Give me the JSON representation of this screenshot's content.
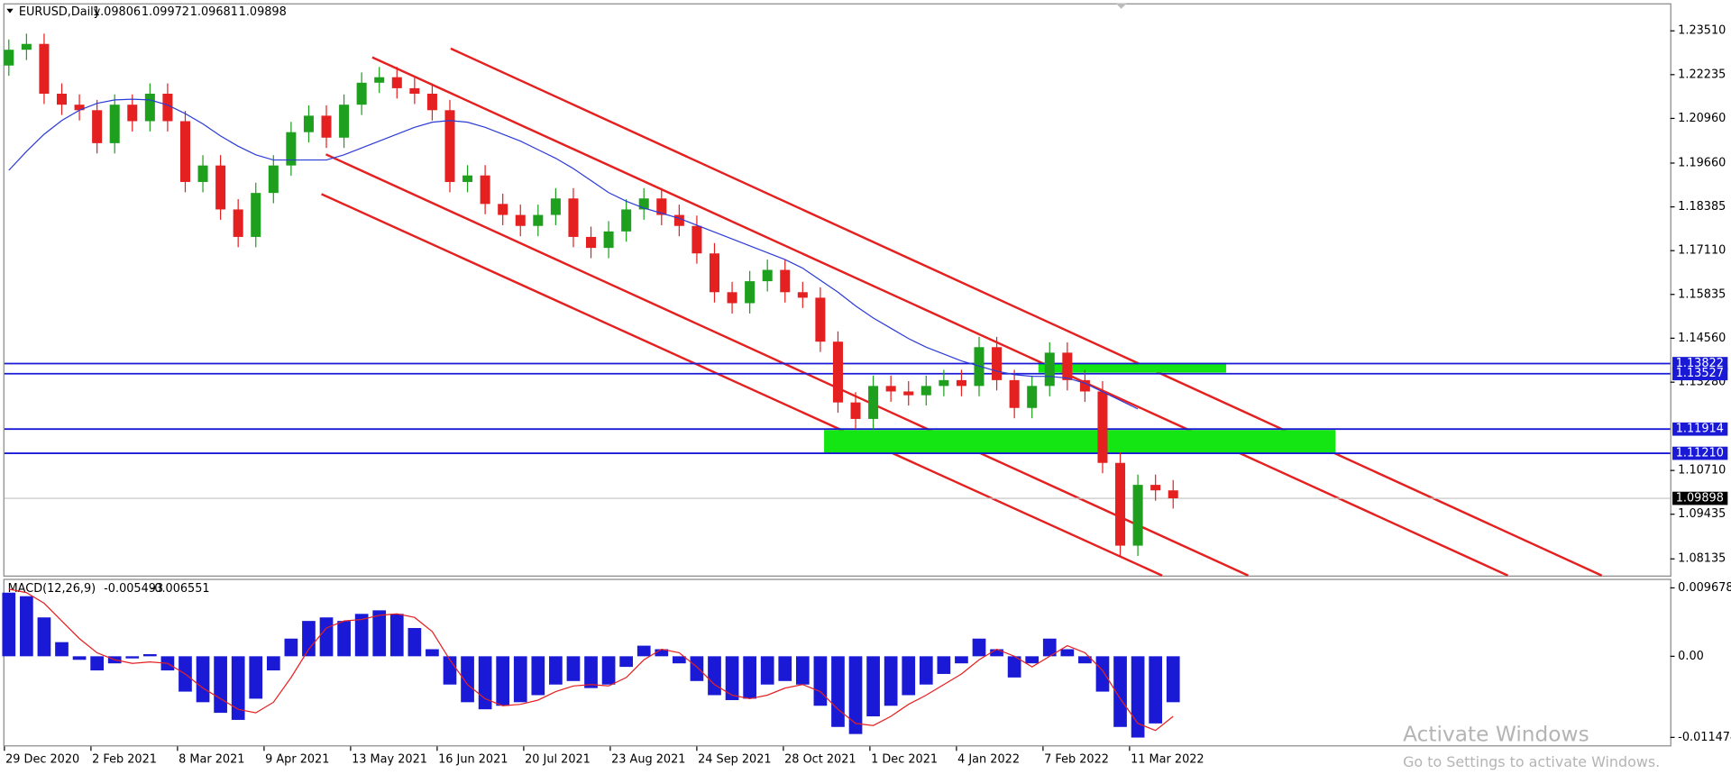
{
  "chart_data": {
    "type": "candlestick",
    "title": "EURUSD,Daily",
    "header_values": [
      1.09806,
      1.09972,
      1.09681,
      1.09898
    ],
    "up_color": "#1ea01e",
    "down_color": "#e52020",
    "ma_color": "#2b3bd6",
    "ylim": [
      1.0765,
      1.2428
    ],
    "yticks": [
      {
        "value": 1.2351,
        "label": "1.23510"
      },
      1.22235,
      {
        "value": 1.2096,
        "label": "1.20960"
      },
      {
        "value": 1.1966,
        "label": "1.19660"
      },
      1.18385,
      {
        "value": 1.1711,
        "label": "1.17110"
      },
      1.15835,
      {
        "value": 1.1456,
        "label": "1.14560"
      },
      {
        "value": 1.1328,
        "label": "1.13280"
      },
      {
        "value": 1.1071,
        "label": "1.10710"
      },
      1.09435,
      1.08135
    ],
    "levels": [
      {
        "value": 1.13822,
        "label": "1.13822"
      },
      {
        "value": 1.13527,
        "label": "1.13527"
      },
      {
        "value": 1.11914,
        "label": "1.11914"
      },
      {
        "value": 1.1121,
        "label": "1.11210"
      }
    ],
    "level_color": "#1a1ad6",
    "x_labels": [
      "29 Dec 2020",
      "2 Feb 2021",
      "8 Mar 2021",
      "9 Apr 2021",
      "13 May 2021",
      "16 Jun 2021",
      "20 Jul 2021",
      "23 Aug 2021",
      "24 Sep 2021",
      "28 Oct 2021",
      "1 Dec 2021",
      "4 Jan 2022",
      "7 Feb 2022",
      "11 Mar 2022"
    ],
    "open": [
      1.225,
      1.2296,
      1.2313,
      1.2168,
      1.2136,
      1.212,
      1.2024,
      1.2136,
      1.2088,
      1.2168,
      1.2088,
      1.1911,
      1.1959,
      1.1831,
      1.1751,
      1.1879,
      1.1959,
      1.2056,
      1.2104,
      1.204,
      1.2136,
      1.22,
      1.2216,
      1.2184,
      1.2168,
      1.212,
      1.1911,
      1.193,
      1.1847,
      1.1815,
      1.1783,
      1.1815,
      1.1863,
      1.1751,
      1.1719,
      1.1767,
      1.1831,
      1.1863,
      1.1815,
      1.1783,
      1.1703,
      1.159,
      1.1558,
      1.1622,
      1.1655,
      1.159,
      1.1574,
      1.1446,
      1.1269,
      1.1221,
      1.1317,
      1.1301,
      1.129,
      1.1317,
      1.1334,
      1.1317,
      1.143,
      1.1334,
      1.1253,
      1.1317,
      1.1414,
      1.1334,
      1.1301,
      1.1093,
      1.0852,
      1.1029,
      1.1013
    ],
    "high": [
      1.2326,
      1.2343,
      1.2343,
      1.2198,
      1.2166,
      1.215,
      1.2166,
      1.2166,
      1.2198,
      1.2198,
      1.2118,
      1.1989,
      1.1989,
      1.1861,
      1.1909,
      1.1989,
      1.2086,
      1.2134,
      1.2134,
      1.2166,
      1.223,
      1.2246,
      1.2246,
      1.2214,
      1.2198,
      1.215,
      1.196,
      1.196,
      1.1877,
      1.1845,
      1.1845,
      1.1893,
      1.1893,
      1.1781,
      1.1797,
      1.1861,
      1.1893,
      1.1893,
      1.1845,
      1.1813,
      1.1733,
      1.162,
      1.1652,
      1.1685,
      1.1685,
      1.162,
      1.1604,
      1.1476,
      1.1299,
      1.1347,
      1.1347,
      1.1331,
      1.1347,
      1.1364,
      1.1364,
      1.146,
      1.146,
      1.1364,
      1.1347,
      1.1444,
      1.1444,
      1.1364,
      1.1331,
      1.1123,
      1.1059,
      1.1059,
      1.1043
    ],
    "low": [
      1.222,
      1.2266,
      1.2138,
      1.2106,
      1.209,
      1.1994,
      1.1994,
      1.2058,
      1.2058,
      1.2058,
      1.1881,
      1.1881,
      1.1801,
      1.1721,
      1.1721,
      1.1849,
      1.1929,
      1.2026,
      1.201,
      1.201,
      1.2106,
      1.217,
      1.2154,
      1.2138,
      1.209,
      1.1881,
      1.1881,
      1.1817,
      1.1785,
      1.1753,
      1.1753,
      1.1785,
      1.1721,
      1.1689,
      1.1689,
      1.1737,
      1.1801,
      1.1785,
      1.1753,
      1.1673,
      1.156,
      1.1528,
      1.1528,
      1.1592,
      1.156,
      1.1544,
      1.1416,
      1.1239,
      1.1191,
      1.1191,
      1.1271,
      1.126,
      1.126,
      1.1287,
      1.1287,
      1.1287,
      1.1304,
      1.1223,
      1.1223,
      1.1287,
      1.1304,
      1.1271,
      1.1063,
      1.0822,
      1.0822,
      1.0983,
      1.096
    ],
    "close": [
      1.2296,
      1.2313,
      1.2168,
      1.2136,
      1.212,
      1.2024,
      1.2136,
      1.2088,
      1.2168,
      1.2088,
      1.1911,
      1.1959,
      1.1831,
      1.1751,
      1.1879,
      1.1959,
      1.2056,
      1.2104,
      1.204,
      1.2136,
      1.22,
      1.2216,
      1.2184,
      1.2168,
      1.212,
      1.1911,
      1.193,
      1.1847,
      1.1815,
      1.1783,
      1.1815,
      1.1863,
      1.1751,
      1.1719,
      1.1767,
      1.1831,
      1.1863,
      1.1815,
      1.1783,
      1.1703,
      1.159,
      1.1558,
      1.1622,
      1.1655,
      1.159,
      1.1574,
      1.1446,
      1.1269,
      1.1221,
      1.1317,
      1.1301,
      1.129,
      1.1317,
      1.1334,
      1.1317,
      1.143,
      1.1334,
      1.1253,
      1.1317,
      1.1414,
      1.1334,
      1.1301,
      1.1093,
      1.0852,
      1.1029,
      1.1013,
      1.099
    ],
    "ma_values": [
      1.1945,
      1.2,
      1.205,
      1.209,
      1.212,
      1.214,
      1.215,
      1.2152,
      1.215,
      1.2135,
      1.211,
      1.208,
      1.2045,
      1.2015,
      1.199,
      1.1975,
      1.1975,
      1.1975,
      1.1975,
      1.199,
      1.201,
      1.203,
      1.205,
      1.207,
      1.2085,
      1.209,
      1.2085,
      1.207,
      1.205,
      1.203,
      1.2005,
      1.198,
      1.195,
      1.1915,
      1.188,
      1.1855,
      1.1835,
      1.182,
      1.1805,
      1.1785,
      1.1765,
      1.1745,
      1.1725,
      1.1705,
      1.1685,
      1.166,
      1.1625,
      1.159,
      1.155,
      1.1515,
      1.1485,
      1.1455,
      1.143,
      1.141,
      1.139,
      1.1375,
      1.136,
      1.135,
      1.1345,
      1.1345,
      1.134,
      1.1325,
      1.13,
      1.1275,
      1.125,
      null,
      null
    ],
    "macd": {
      "title": "MACD(12,26,9)",
      "printed_values": [
        -0.005493,
        -0.006551
      ],
      "hist_color": "#1a1ad6",
      "signal_color": "#e52020",
      "ylim": [
        -0.0126,
        0.0108
      ],
      "yticks": [
        0.009678,
        {
          "value": 0,
          "label": "0.00"
        },
        -0.011474
      ],
      "histogram": [
        0.009,
        0.0085,
        0.0055,
        0.002,
        -0.0005,
        -0.002,
        -0.001,
        -0.0003,
        0.0003,
        -0.002,
        -0.005,
        -0.0065,
        -0.008,
        -0.009,
        -0.006,
        -0.002,
        0.0025,
        0.005,
        0.0055,
        0.005,
        0.006,
        0.0065,
        0.006,
        0.004,
        0.001,
        -0.004,
        -0.0065,
        -0.0075,
        -0.007,
        -0.0065,
        -0.0055,
        -0.004,
        -0.0035,
        -0.0045,
        -0.004,
        -0.0015,
        0.0015,
        0.001,
        -0.001,
        -0.0035,
        -0.0055,
        -0.0062,
        -0.006,
        -0.004,
        -0.0035,
        -0.004,
        -0.007,
        -0.01,
        -0.011,
        -0.0085,
        -0.007,
        -0.0055,
        -0.004,
        -0.0025,
        -0.001,
        0.0025,
        0.001,
        -0.003,
        -0.001,
        0.0025,
        0.001,
        -0.001,
        -0.005,
        -0.01,
        -0.0115,
        -0.0095,
        -0.0065
      ],
      "signal": [
        0.0095,
        0.009,
        0.0075,
        0.005,
        0.0025,
        0.0005,
        -0.0005,
        -0.001,
        -0.0008,
        -0.001,
        -0.0025,
        -0.0045,
        -0.006,
        -0.0075,
        -0.008,
        -0.0065,
        -0.003,
        0.001,
        0.004,
        0.005,
        0.0052,
        0.0058,
        0.006,
        0.0055,
        0.0035,
        -0.0005,
        -0.004,
        -0.006,
        -0.007,
        -0.0068,
        -0.0062,
        -0.005,
        -0.0042,
        -0.004,
        -0.0042,
        -0.003,
        -0.0005,
        0.001,
        0.0005,
        -0.0015,
        -0.004,
        -0.0055,
        -0.006,
        -0.0055,
        -0.0045,
        -0.004,
        -0.005,
        -0.0075,
        -0.0095,
        -0.0098,
        -0.0085,
        -0.0068,
        -0.0055,
        -0.004,
        -0.0025,
        -0.0005,
        0.001,
        0.0,
        -0.0015,
        0.0,
        0.0015,
        0.0005,
        -0.002,
        -0.006,
        -0.0095,
        -0.0105,
        -0.0085
      ]
    }
  },
  "watermark": {
    "title": "Activate Windows",
    "subtitle": "Go to Settings to activate Windows."
  }
}
